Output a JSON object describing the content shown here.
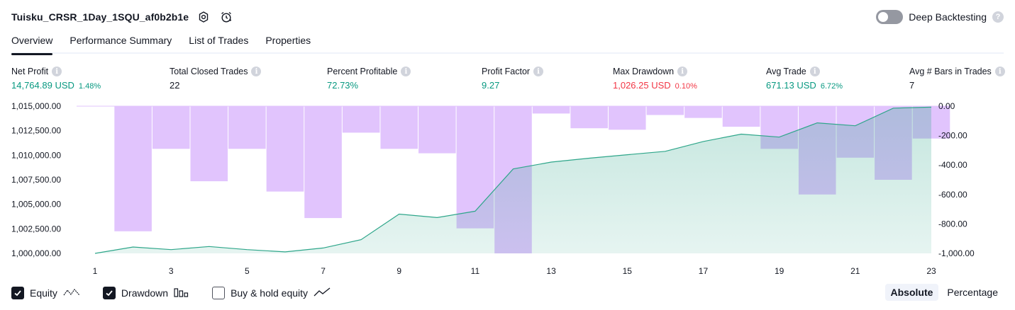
{
  "header": {
    "strategy_name": "Tuisku_CRSR_1Day_1SQU_af0b2b1e",
    "deep_backtesting_label": "Deep Backtesting",
    "help_glyph": "?"
  },
  "tabs": [
    {
      "label": "Overview"
    },
    {
      "label": "Performance Summary"
    },
    {
      "label": "List of Trades"
    },
    {
      "label": "Properties"
    }
  ],
  "info_glyph": "i",
  "metrics": {
    "net_profit": {
      "label": "Net Profit",
      "value": "14,764.89 USD",
      "pct": "1.48%"
    },
    "total_closed_trades": {
      "label": "Total Closed Trades",
      "value": "22"
    },
    "percent_profitable": {
      "label": "Percent Profitable",
      "value": "72.73%"
    },
    "profit_factor": {
      "label": "Profit Factor",
      "value": "9.27"
    },
    "max_drawdown": {
      "label": "Max Drawdown",
      "value": "1,026.25 USD",
      "pct": "0.10%"
    },
    "avg_trade": {
      "label": "Avg Trade",
      "value": "671.13 USD",
      "pct": "6.72%"
    },
    "avg_bars": {
      "label": "Avg # Bars in Trades",
      "value": "7"
    }
  },
  "colors": {
    "positive": "#089981",
    "negative": "#f23645",
    "equity_line": "#2ea68a",
    "equity_fill": "#d9f1ea",
    "drawdown_bar": "#e1c4fd"
  },
  "chart_data": {
    "type": "area",
    "x_ticks": [
      "1",
      "3",
      "5",
      "7",
      "9",
      "11",
      "13",
      "15",
      "17",
      "19",
      "21",
      "23"
    ],
    "left_axis": {
      "ticks": [
        "1,015,000.00",
        "1,012,500.00",
        "1,010,000.00",
        "1,007,500.00",
        "1,005,000.00",
        "1,002,500.00",
        "1,000,000.00"
      ],
      "ylim": [
        1000000,
        1015000
      ]
    },
    "right_axis": {
      "ticks": [
        "0.00",
        "-200.00",
        "-400.00",
        "-600.00",
        "-800.00",
        "-1,000.00"
      ],
      "ylim": [
        -1000,
        0
      ]
    },
    "series": [
      {
        "name": "Equity",
        "kind": "line",
        "x": [
          1,
          2,
          3,
          4,
          5,
          6,
          7,
          8,
          9,
          10,
          11,
          12,
          13,
          14,
          15,
          16,
          17,
          18,
          19,
          20,
          21,
          22,
          23
        ],
        "values": [
          1000000,
          1000650,
          1000380,
          1000700,
          1000380,
          1000150,
          1000550,
          1001400,
          1004000,
          1003650,
          1004300,
          1008600,
          1009300,
          1009700,
          1010050,
          1010400,
          1011400,
          1012150,
          1011850,
          1013300,
          1013000,
          1014800,
          1014900
        ]
      },
      {
        "name": "Drawdown",
        "kind": "bar",
        "x": [
          1,
          2,
          3,
          4,
          5,
          6,
          7,
          8,
          9,
          10,
          11,
          12,
          13,
          14,
          15,
          16,
          17,
          18,
          19,
          20,
          21,
          22,
          23
        ],
        "values": [
          0,
          -850,
          -290,
          -510,
          -290,
          -580,
          -760,
          -180,
          -290,
          -320,
          -830,
          -1000,
          -50,
          -150,
          -160,
          -60,
          -80,
          -140,
          -290,
          -600,
          -350,
          -500,
          -220
        ]
      }
    ]
  },
  "legend": {
    "equity": "Equity",
    "drawdown": "Drawdown",
    "buy_hold": "Buy & hold equity"
  },
  "mode": {
    "absolute": "Absolute",
    "percentage": "Percentage"
  }
}
